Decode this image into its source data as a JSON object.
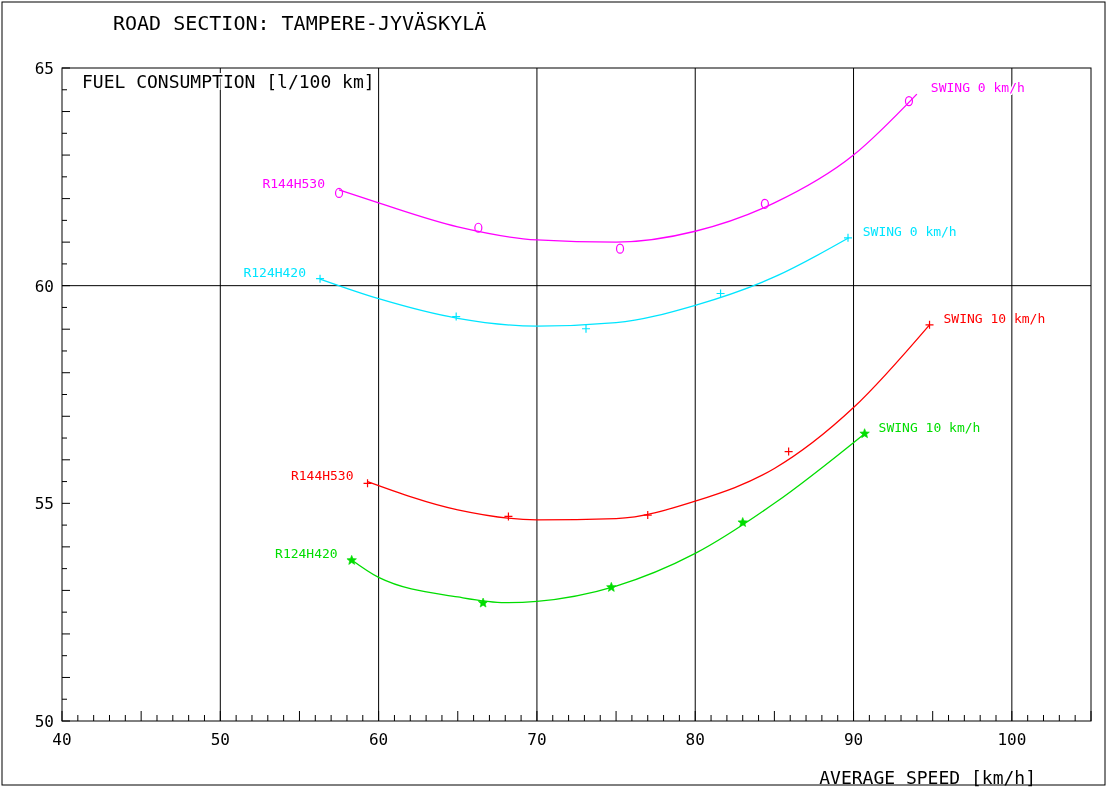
{
  "chart_data": {
    "type": "scatter",
    "title": "ROAD SECTION: TAMPERE-JYVÄSKYLÄ",
    "xlabel": "AVERAGE SPEED [km/h]",
    "ylabel": "FUEL CONSUMPTION [l/100 km]",
    "xlim": [
      40,
      105
    ],
    "xticks": [
      40,
      50,
      60,
      70,
      80,
      90,
      100
    ],
    "ylim": [
      50,
      65
    ],
    "yticks": [
      50,
      55,
      60,
      65
    ],
    "grid": "x",
    "ref_lines": [
      {
        "axis": "y",
        "value": 60,
        "color": "#000000"
      }
    ],
    "series": [
      {
        "color": "#ff00ff",
        "marker": "circle",
        "x": [
          57.5,
          66.3,
          75.25,
          84.4,
          93.5
        ],
        "values": [
          62.13,
          61.33,
          60.85,
          61.88,
          64.24
        ]
      },
      {
        "type": "line",
        "color": "#ff00ff",
        "marker": "none",
        "x": [
          57.5,
          60,
          65,
          70,
          75,
          80,
          85,
          90,
          94
        ],
        "values": [
          62.2,
          61.9,
          61.35,
          61.05,
          61.0,
          61.25,
          61.9,
          63.0,
          64.4
        ]
      },
      {
        "color": "#00e5ff",
        "marker": "cross",
        "x": [
          56.3,
          64.9,
          73.1,
          81.6,
          89.65
        ],
        "values": [
          60.16,
          59.29,
          59.01,
          59.82,
          61.1
        ]
      },
      {
        "type": "line",
        "color": "#00e5ff",
        "marker": "none",
        "x": [
          56.3,
          60,
          65,
          70,
          75,
          80,
          85,
          89.7
        ],
        "values": [
          60.15,
          59.7,
          59.25,
          59.07,
          59.15,
          59.55,
          60.2,
          61.1
        ]
      },
      {
        "color": "#ff0000",
        "marker": "cross",
        "x": [
          59.3,
          68.2,
          77.0,
          85.9,
          94.8
        ],
        "values": [
          55.46,
          54.7,
          54.73,
          56.19,
          59.1
        ]
      },
      {
        "type": "line",
        "color": "#ff0000",
        "marker": "none",
        "x": [
          59.3,
          65,
          70,
          75,
          80,
          85,
          90,
          94.8
        ],
        "values": [
          55.5,
          54.85,
          54.62,
          54.65,
          55.05,
          55.8,
          57.2,
          59.1
        ]
      },
      {
        "color": "#00dd00",
        "marker": "star",
        "x": [
          58.3,
          66.6,
          74.7,
          83.0,
          90.7
        ],
        "values": [
          53.69,
          52.71,
          53.07,
          54.56,
          56.6
        ]
      },
      {
        "type": "line",
        "color": "#00dd00",
        "marker": "none",
        "x": [
          58.3,
          60,
          65,
          68,
          70,
          75,
          80,
          85,
          90.7
        ],
        "values": [
          53.7,
          53.3,
          52.85,
          52.72,
          52.75,
          53.1,
          53.85,
          55.0,
          56.6
        ]
      }
    ],
    "annotations": [
      {
        "text": "R144H530",
        "x": 57.5,
        "y": 62.2
      },
      {
        "text": "SWING 0 km/h",
        "x": 94,
        "y": 64.4
      },
      {
        "text": "R124H420",
        "x": 56.3,
        "y": 60.15
      },
      {
        "text": "SWING 0 km/h",
        "x": 89.7,
        "y": 61.1
      },
      {
        "text": "R144H530",
        "x": 59.3,
        "y": 55.5
      },
      {
        "text": "SWING 10 km/h",
        "x": 94.8,
        "y": 59.1
      },
      {
        "text": "R124H420",
        "x": 58.3,
        "y": 53.7
      },
      {
        "text": "SWING 10 km/h",
        "x": 90.7,
        "y": 56.6
      }
    ]
  }
}
